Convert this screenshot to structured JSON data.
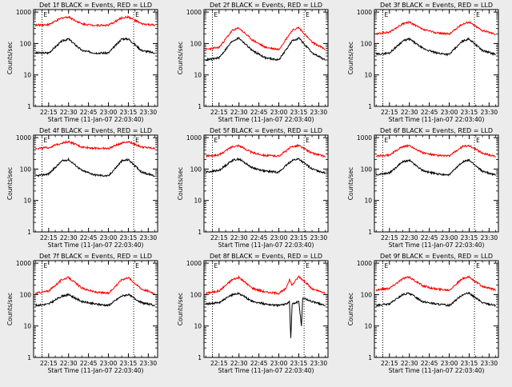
{
  "chart_data": [
    {
      "type": "line",
      "title": "Det 1f BLACK = Events, RED = LLD",
      "xlabel": "Start Time (11-Jan-07 22:03:40)",
      "ylabel": "Counts/sec",
      "x_ticks": [
        "22:15",
        "22:30",
        "22:45",
        "23:00",
        "23:15",
        "23:30"
      ],
      "y_ticks": [
        "1",
        "10",
        "100",
        "1000"
      ],
      "yscale": "log",
      "ylim": [
        1,
        1200
      ],
      "marker_labels": [
        "E",
        "E"
      ],
      "marker_times": [
        "22:10",
        "23:19"
      ],
      "series": [
        {
          "color": "#000000",
          "times": [
            "22:05",
            "22:15",
            "22:25",
            "22:30",
            "22:40",
            "22:50",
            "23:00",
            "23:10",
            "23:15",
            "23:25",
            "23:35"
          ],
          "values": [
            50,
            50,
            120,
            140,
            60,
            50,
            50,
            140,
            140,
            60,
            50
          ]
        },
        {
          "color": "#ff0000",
          "times": [
            "22:05",
            "22:15",
            "22:25",
            "22:30",
            "22:40",
            "22:50",
            "23:00",
            "23:10",
            "23:15",
            "23:25",
            "23:35"
          ],
          "values": [
            380,
            400,
            650,
            700,
            420,
            380,
            380,
            650,
            700,
            420,
            380
          ]
        }
      ]
    },
    {
      "type": "line",
      "title": "Det 2f BLACK = Events, RED = LLD",
      "xlabel": "Start Time (11-Jan-07 22:03:40)",
      "ylabel": "Counts/sec",
      "x_ticks": [
        "22:15",
        "22:30",
        "22:45",
        "23:00",
        "23:15",
        "23:30"
      ],
      "y_ticks": [
        "1",
        "10",
        "100",
        "1000"
      ],
      "yscale": "log",
      "ylim": [
        1,
        1200
      ],
      "marker_labels": [
        "E",
        "E"
      ],
      "marker_times": [
        "22:10",
        "23:19"
      ],
      "series": [
        {
          "color": "#000000",
          "times": [
            "22:05",
            "22:15",
            "22:25",
            "22:30",
            "22:40",
            "22:50",
            "23:00",
            "23:10",
            "23:15",
            "23:25",
            "23:35"
          ],
          "values": [
            30,
            35,
            120,
            150,
            60,
            35,
            30,
            120,
            150,
            50,
            30
          ]
        },
        {
          "color": "#ff0000",
          "times": [
            "22:05",
            "22:15",
            "22:25",
            "22:30",
            "22:40",
            "22:50",
            "23:00",
            "23:10",
            "23:15",
            "23:25",
            "23:35"
          ],
          "values": [
            65,
            75,
            260,
            310,
            130,
            75,
            65,
            260,
            320,
            110,
            65
          ]
        }
      ]
    },
    {
      "type": "line",
      "title": "Det 3f BLACK = Events, RED = LLD",
      "xlabel": "Start Time (11-Jan-07 22:03:40)",
      "ylabel": "Counts/sec",
      "x_ticks": [
        "22:15",
        "22:30",
        "22:45",
        "23:00",
        "23:15",
        "23:30"
      ],
      "y_ticks": [
        "1",
        "10",
        "100",
        "1000"
      ],
      "yscale": "log",
      "ylim": [
        1,
        1200
      ],
      "marker_labels": [
        "E",
        "E"
      ],
      "marker_times": [
        "22:10",
        "23:19"
      ],
      "series": [
        {
          "color": "#000000",
          "times": [
            "22:05",
            "22:15",
            "22:25",
            "22:30",
            "22:40",
            "22:50",
            "23:00",
            "23:10",
            "23:15",
            "23:25",
            "23:35"
          ],
          "values": [
            45,
            50,
            120,
            140,
            70,
            50,
            45,
            120,
            140,
            60,
            45
          ]
        },
        {
          "color": "#ff0000",
          "times": [
            "22:05",
            "22:15",
            "22:25",
            "22:30",
            "22:40",
            "22:50",
            "23:00",
            "23:10",
            "23:15",
            "23:25",
            "23:35"
          ],
          "values": [
            200,
            230,
            420,
            480,
            280,
            220,
            200,
            420,
            480,
            260,
            200
          ]
        }
      ]
    },
    {
      "type": "line",
      "title": "Det 4f BLACK = Events, RED = LLD",
      "xlabel": "Start Time (11-Jan-07 22:03:40)",
      "ylabel": "Counts/sec",
      "x_ticks": [
        "22:15",
        "22:30",
        "22:45",
        "23:00",
        "23:15",
        "23:30"
      ],
      "y_ticks": [
        "1",
        "10",
        "100",
        "1000"
      ],
      "yscale": "log",
      "ylim": [
        1,
        1200
      ],
      "marker_labels": [
        "E",
        "E"
      ],
      "marker_times": [
        "22:10",
        "23:19"
      ],
      "series": [
        {
          "color": "#000000",
          "times": [
            "22:05",
            "22:15",
            "22:25",
            "22:30",
            "22:40",
            "22:50",
            "23:00",
            "23:10",
            "23:15",
            "23:25",
            "23:35"
          ],
          "values": [
            60,
            70,
            180,
            200,
            90,
            65,
            60,
            180,
            200,
            80,
            60
          ]
        },
        {
          "color": "#ff0000",
          "times": [
            "22:05",
            "22:15",
            "22:25",
            "22:30",
            "22:40",
            "22:50",
            "23:00",
            "23:10",
            "23:15",
            "23:25",
            "23:35"
          ],
          "values": [
            450,
            480,
            680,
            750,
            500,
            460,
            450,
            680,
            750,
            500,
            450
          ]
        }
      ]
    },
    {
      "type": "line",
      "title": "Det 5f BLACK = Events, RED = LLD",
      "xlabel": "Start Time (11-Jan-07 22:03:40)",
      "ylabel": "Counts/sec",
      "x_ticks": [
        "22:15",
        "22:30",
        "22:45",
        "23:00",
        "23:15",
        "23:30"
      ],
      "y_ticks": [
        "1",
        "10",
        "100",
        "1000"
      ],
      "yscale": "log",
      "ylim": [
        1,
        1200
      ],
      "marker_labels": [
        "E",
        "E"
      ],
      "marker_times": [
        "22:10",
        "23:19"
      ],
      "series": [
        {
          "color": "#000000",
          "times": [
            "22:05",
            "22:15",
            "22:25",
            "22:30",
            "22:40",
            "22:50",
            "23:00",
            "23:10",
            "23:15",
            "23:25",
            "23:35"
          ],
          "values": [
            80,
            90,
            190,
            210,
            110,
            85,
            80,
            190,
            210,
            100,
            75
          ]
        },
        {
          "color": "#ff0000",
          "times": [
            "22:05",
            "22:15",
            "22:25",
            "22:30",
            "22:40",
            "22:50",
            "23:00",
            "23:10",
            "23:15",
            "23:25",
            "23:35"
          ],
          "values": [
            260,
            280,
            520,
            560,
            330,
            270,
            260,
            520,
            560,
            320,
            250
          ]
        }
      ]
    },
    {
      "type": "line",
      "title": "Det 6f BLACK = Events, RED = LLD",
      "xlabel": "Start Time (11-Jan-07 22:03:40)",
      "ylabel": "Counts/sec",
      "x_ticks": [
        "22:15",
        "22:30",
        "22:45",
        "23:00",
        "23:15",
        "23:30"
      ],
      "y_ticks": [
        "1",
        "10",
        "100",
        "1000"
      ],
      "yscale": "log",
      "ylim": [
        1,
        1200
      ],
      "marker_labels": [
        "E",
        "E"
      ],
      "marker_times": [
        "22:10",
        "23:19"
      ],
      "series": [
        {
          "color": "#000000",
          "times": [
            "22:05",
            "22:15",
            "22:25",
            "22:30",
            "22:40",
            "22:50",
            "23:00",
            "23:10",
            "23:15",
            "23:25",
            "23:35"
          ],
          "values": [
            65,
            75,
            170,
            190,
            90,
            70,
            65,
            170,
            190,
            85,
            65
          ]
        },
        {
          "color": "#ff0000",
          "times": [
            "22:05",
            "22:15",
            "22:25",
            "22:30",
            "22:40",
            "22:50",
            "23:00",
            "23:10",
            "23:15",
            "23:25",
            "23:35"
          ],
          "values": [
            260,
            280,
            520,
            560,
            330,
            270,
            260,
            520,
            560,
            320,
            250
          ]
        }
      ]
    },
    {
      "type": "line",
      "title": "Det 7f BLACK = Events, RED = LLD",
      "xlabel": "Start Time (11-Jan-07 22:03:40)",
      "ylabel": "Counts/sec",
      "x_ticks": [
        "22:15",
        "22:30",
        "22:45",
        "23:00",
        "23:15",
        "23:30"
      ],
      "y_ticks": [
        "1",
        "10",
        "100",
        "1000"
      ],
      "yscale": "log",
      "ylim": [
        1,
        1200
      ],
      "marker_labels": [
        "E",
        "E"
      ],
      "marker_times": [
        "22:10",
        "23:19"
      ],
      "series": [
        {
          "color": "#000000",
          "times": [
            "22:05",
            "22:15",
            "22:25",
            "22:30",
            "22:40",
            "22:50",
            "23:00",
            "23:10",
            "23:15",
            "23:25",
            "23:35"
          ],
          "values": [
            45,
            50,
            90,
            100,
            60,
            50,
            45,
            90,
            100,
            55,
            45
          ]
        },
        {
          "color": "#ff0000",
          "times": [
            "22:05",
            "22:15",
            "22:25",
            "22:30",
            "22:40",
            "22:50",
            "23:00",
            "23:10",
            "23:15",
            "23:25",
            "23:35"
          ],
          "values": [
            110,
            130,
            300,
            350,
            160,
            120,
            110,
            300,
            350,
            150,
            110
          ]
        }
      ]
    },
    {
      "type": "line",
      "title": "Det 8f BLACK = Events, RED = LLD",
      "xlabel": "Start Time (11-Jan-07 22:03:40)",
      "ylabel": "Counts/sec",
      "x_ticks": [
        "22:15",
        "22:30",
        "22:45",
        "23:00",
        "23:15",
        "23:30"
      ],
      "y_ticks": [
        "1",
        "10",
        "100",
        "1000"
      ],
      "yscale": "log",
      "ylim": [
        1,
        1200
      ],
      "marker_labels": [
        "E",
        "E"
      ],
      "marker_times": [
        "22:10",
        "23:19"
      ],
      "series": [
        {
          "color": "#000000",
          "times": [
            "22:05",
            "22:15",
            "22:25",
            "22:30",
            "22:40",
            "22:50",
            "23:00",
            "23:05",
            "23:08",
            "23:09",
            "23:10",
            "23:15",
            "23:17",
            "23:18",
            "23:25",
            "23:35"
          ],
          "values": [
            50,
            55,
            100,
            110,
            60,
            50,
            45,
            50,
            60,
            4,
            50,
            60,
            10,
            80,
            60,
            45
          ]
        },
        {
          "color": "#ff0000",
          "times": [
            "22:05",
            "22:15",
            "22:25",
            "22:30",
            "22:40",
            "22:50",
            "23:00",
            "23:05",
            "23:08",
            "23:10",
            "23:15",
            "23:20",
            "23:25",
            "23:35"
          ],
          "values": [
            110,
            130,
            300,
            350,
            160,
            120,
            110,
            150,
            300,
            200,
            380,
            250,
            150,
            110
          ]
        }
      ]
    },
    {
      "type": "line",
      "title": "Det 9f BLACK = Events, RED = LLD",
      "xlabel": "Start Time (11-Jan-07 22:03:40)",
      "ylabel": "Counts/sec",
      "x_ticks": [
        "22:15",
        "22:30",
        "22:45",
        "23:00",
        "23:15",
        "23:30"
      ],
      "y_ticks": [
        "1",
        "10",
        "100",
        "1000"
      ],
      "yscale": "log",
      "ylim": [
        1,
        1200
      ],
      "marker_labels": [
        "E",
        "E"
      ],
      "marker_times": [
        "22:10",
        "23:19"
      ],
      "series": [
        {
          "color": "#000000",
          "times": [
            "22:05",
            "22:15",
            "22:25",
            "22:30",
            "22:40",
            "22:50",
            "23:00",
            "23:10",
            "23:15",
            "23:25",
            "23:35"
          ],
          "values": [
            45,
            50,
            100,
            110,
            60,
            50,
            45,
            100,
            110,
            55,
            45
          ]
        },
        {
          "color": "#ff0000",
          "times": [
            "22:05",
            "22:15",
            "22:25",
            "22:30",
            "22:40",
            "22:50",
            "23:00",
            "23:10",
            "23:15",
            "23:25",
            "23:35"
          ],
          "values": [
            140,
            160,
            320,
            360,
            190,
            150,
            140,
            320,
            360,
            180,
            140
          ]
        }
      ]
    }
  ]
}
